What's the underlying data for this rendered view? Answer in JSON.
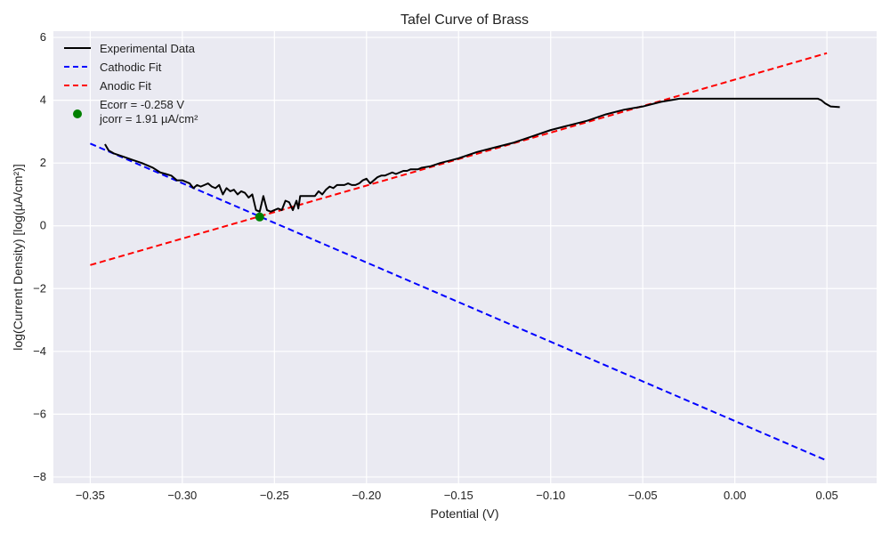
{
  "chart_data": {
    "type": "line",
    "title": "Tafel Curve of Brass",
    "xlabel": "Potential (V)",
    "ylabel": "log(Current Density) [log(µA/cm²)]",
    "xlim": [
      -0.37,
      0.077
    ],
    "ylim": [
      -8.2,
      6.2
    ],
    "xticks": [
      -0.35,
      -0.3,
      -0.25,
      -0.2,
      -0.15,
      -0.1,
      -0.05,
      0.0,
      0.05
    ],
    "xtick_labels": [
      "−0.35",
      "−0.30",
      "−0.25",
      "−0.20",
      "−0.15",
      "−0.10",
      "−0.05",
      "0.00",
      "0.05"
    ],
    "yticks": [
      -8,
      -6,
      -4,
      -2,
      0,
      2,
      4,
      6
    ],
    "ytick_labels": [
      "−8",
      "−6",
      "−4",
      "−2",
      "0",
      "2",
      "4",
      "6"
    ],
    "grid": true,
    "legend_position": "top-left",
    "background": "#eaeaf2",
    "series": [
      {
        "name": "Experimental Data",
        "style": "solid",
        "color": "#000000",
        "x": [
          -0.342,
          -0.34,
          -0.337,
          -0.332,
          -0.327,
          -0.322,
          -0.318,
          -0.316,
          -0.312,
          -0.309,
          -0.306,
          -0.303,
          -0.3,
          -0.298,
          -0.296,
          -0.294,
          -0.292,
          -0.29,
          -0.288,
          -0.286,
          -0.284,
          -0.282,
          -0.28,
          -0.278,
          -0.276,
          -0.274,
          -0.272,
          -0.27,
          -0.268,
          -0.266,
          -0.264,
          -0.262,
          -0.26,
          -0.258,
          -0.256,
          -0.254,
          -0.252,
          -0.25,
          -0.248,
          -0.246,
          -0.244,
          -0.242,
          -0.24,
          -0.238,
          -0.237,
          -0.236,
          -0.235,
          -0.234,
          -0.232,
          -0.23,
          -0.228,
          -0.226,
          -0.224,
          -0.222,
          -0.22,
          -0.218,
          -0.216,
          -0.214,
          -0.212,
          -0.21,
          -0.208,
          -0.206,
          -0.204,
          -0.202,
          -0.2,
          -0.198,
          -0.196,
          -0.194,
          -0.192,
          -0.19,
          -0.188,
          -0.186,
          -0.184,
          -0.182,
          -0.18,
          -0.178,
          -0.176,
          -0.174,
          -0.172,
          -0.17,
          -0.165,
          -0.16,
          -0.15,
          -0.14,
          -0.13,
          -0.12,
          -0.11,
          -0.1,
          -0.09,
          -0.08,
          -0.07,
          -0.06,
          -0.05,
          -0.04,
          -0.035,
          -0.03,
          -0.027,
          -0.02,
          -0.01,
          0.0,
          0.01,
          0.02,
          0.03,
          0.04,
          0.045,
          0.047,
          0.049,
          0.052,
          0.057
        ],
        "y": [
          2.6,
          2.4,
          2.3,
          2.2,
          2.1,
          2.0,
          1.9,
          1.85,
          1.7,
          1.65,
          1.6,
          1.45,
          1.45,
          1.4,
          1.35,
          1.2,
          1.3,
          1.25,
          1.3,
          1.35,
          1.25,
          1.2,
          1.3,
          1.0,
          1.2,
          1.1,
          1.15,
          1.0,
          1.1,
          1.05,
          0.9,
          1.0,
          0.5,
          0.45,
          0.95,
          0.5,
          0.45,
          0.5,
          0.55,
          0.5,
          0.8,
          0.75,
          0.5,
          0.8,
          0.55,
          0.95,
          0.95,
          0.95,
          0.95,
          0.95,
          0.95,
          1.1,
          1.0,
          1.15,
          1.25,
          1.2,
          1.3,
          1.3,
          1.3,
          1.35,
          1.3,
          1.3,
          1.35,
          1.45,
          1.5,
          1.35,
          1.45,
          1.55,
          1.6,
          1.6,
          1.65,
          1.7,
          1.65,
          1.7,
          1.75,
          1.75,
          1.8,
          1.8,
          1.8,
          1.85,
          1.9,
          2.0,
          2.15,
          2.35,
          2.5,
          2.65,
          2.85,
          3.05,
          3.2,
          3.35,
          3.55,
          3.7,
          3.8,
          3.95,
          4.0,
          4.05,
          4.05,
          4.05,
          4.05,
          4.05,
          4.05,
          4.05,
          4.05,
          4.05,
          4.05,
          4.0,
          3.9,
          3.8,
          3.78
        ]
      },
      {
        "name": "Cathodic Fit",
        "style": "dashed",
        "color": "#0000ff",
        "x": [
          -0.35,
          0.05
        ],
        "y": [
          2.62,
          -7.48
        ]
      },
      {
        "name": "Anodic Fit",
        "style": "dashed",
        "color": "#ff0000",
        "x": [
          -0.35,
          0.05
        ],
        "y": [
          -1.25,
          5.5
        ]
      }
    ],
    "annotation_point": {
      "x": -0.258,
      "y": 0.281,
      "color": "#008000",
      "label_lines": [
        "Ecorr = -0.258 V",
        "jcorr = 1.91 µA/cm²"
      ]
    }
  }
}
